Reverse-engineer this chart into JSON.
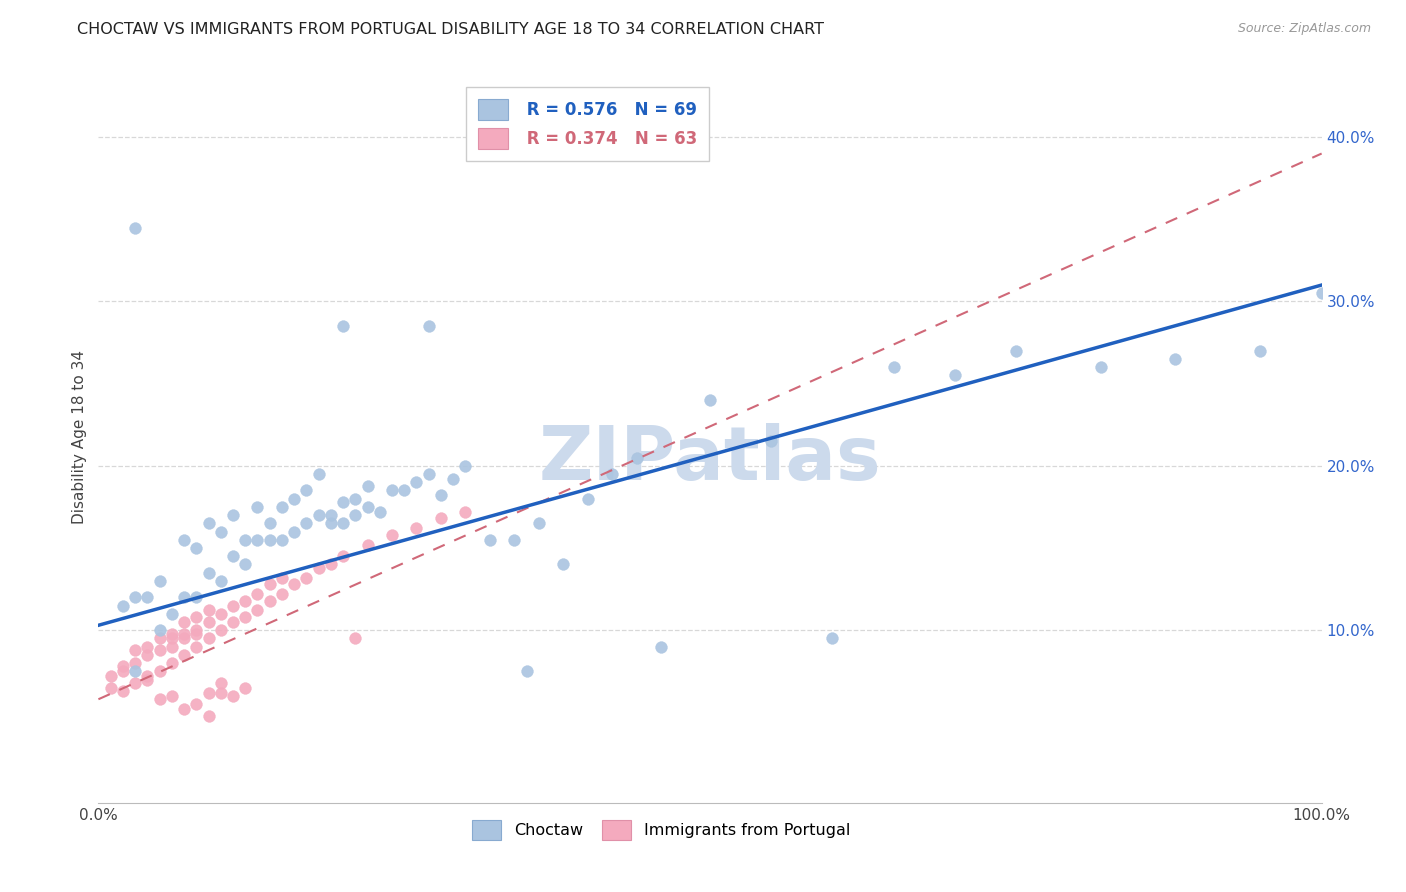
{
  "title": "CHOCTAW VS IMMIGRANTS FROM PORTUGAL DISABILITY AGE 18 TO 34 CORRELATION CHART",
  "source": "Source: ZipAtlas.com",
  "ylabel": "Disability Age 18 to 34",
  "xlim": [
    0,
    1.0
  ],
  "ylim": [
    -0.005,
    0.44
  ],
  "xticks": [
    0.0,
    0.1,
    0.2,
    0.3,
    0.4,
    0.5,
    0.6,
    0.7,
    0.8,
    0.9,
    1.0
  ],
  "yticks": [
    0.0,
    0.1,
    0.2,
    0.3,
    0.4
  ],
  "choctaw_R": 0.576,
  "choctaw_N": 69,
  "portugal_R": 0.374,
  "portugal_N": 63,
  "choctaw_color": "#aac4e0",
  "portugal_color": "#f4aabe",
  "choctaw_line_color": "#2060bf",
  "portugal_line_color": "#d06878",
  "watermark_color": "#ccdaec",
  "background_color": "#ffffff",
  "grid_color": "#d8d8d8",
  "choctaw_x": [
    0.02,
    0.03,
    0.03,
    0.04,
    0.05,
    0.05,
    0.06,
    0.07,
    0.07,
    0.08,
    0.08,
    0.09,
    0.09,
    0.1,
    0.1,
    0.11,
    0.11,
    0.12,
    0.12,
    0.13,
    0.13,
    0.14,
    0.14,
    0.15,
    0.15,
    0.16,
    0.16,
    0.17,
    0.17,
    0.18,
    0.18,
    0.19,
    0.19,
    0.2,
    0.2,
    0.21,
    0.21,
    0.22,
    0.22,
    0.23,
    0.24,
    0.25,
    0.26,
    0.27,
    0.28,
    0.29,
    0.3,
    0.32,
    0.34,
    0.36,
    0.38,
    0.4,
    0.42,
    0.44,
    0.46,
    0.5,
    0.55,
    0.6,
    0.65,
    0.7,
    0.75,
    0.82,
    0.88,
    0.95,
    1.0,
    0.03,
    0.2,
    0.27,
    0.35
  ],
  "choctaw_y": [
    0.115,
    0.075,
    0.12,
    0.12,
    0.1,
    0.13,
    0.11,
    0.12,
    0.155,
    0.12,
    0.15,
    0.135,
    0.165,
    0.13,
    0.16,
    0.145,
    0.17,
    0.14,
    0.155,
    0.155,
    0.175,
    0.155,
    0.165,
    0.155,
    0.175,
    0.16,
    0.18,
    0.165,
    0.185,
    0.17,
    0.195,
    0.165,
    0.17,
    0.165,
    0.178,
    0.17,
    0.18,
    0.175,
    0.188,
    0.172,
    0.185,
    0.185,
    0.19,
    0.195,
    0.182,
    0.192,
    0.2,
    0.155,
    0.155,
    0.165,
    0.14,
    0.18,
    0.195,
    0.205,
    0.09,
    0.24,
    0.215,
    0.095,
    0.26,
    0.255,
    0.27,
    0.26,
    0.265,
    0.27,
    0.305,
    0.345,
    0.285,
    0.285,
    0.075
  ],
  "portugal_x": [
    0.01,
    0.01,
    0.02,
    0.02,
    0.02,
    0.03,
    0.03,
    0.03,
    0.04,
    0.04,
    0.04,
    0.05,
    0.05,
    0.05,
    0.06,
    0.06,
    0.06,
    0.07,
    0.07,
    0.07,
    0.08,
    0.08,
    0.08,
    0.09,
    0.09,
    0.09,
    0.1,
    0.1,
    0.11,
    0.11,
    0.12,
    0.12,
    0.13,
    0.13,
    0.14,
    0.14,
    0.15,
    0.15,
    0.16,
    0.17,
    0.18,
    0.19,
    0.2,
    0.22,
    0.24,
    0.26,
    0.28,
    0.3,
    0.05,
    0.07,
    0.06,
    0.08,
    0.09,
    0.1,
    0.11,
    0.12,
    0.04,
    0.06,
    0.07,
    0.08,
    0.09,
    0.1,
    0.21
  ],
  "portugal_y": [
    0.065,
    0.072,
    0.063,
    0.075,
    0.078,
    0.068,
    0.08,
    0.088,
    0.072,
    0.085,
    0.09,
    0.075,
    0.088,
    0.095,
    0.08,
    0.09,
    0.098,
    0.085,
    0.095,
    0.105,
    0.09,
    0.098,
    0.108,
    0.095,
    0.105,
    0.112,
    0.1,
    0.11,
    0.105,
    0.115,
    0.108,
    0.118,
    0.112,
    0.122,
    0.118,
    0.128,
    0.122,
    0.132,
    0.128,
    0.132,
    0.138,
    0.14,
    0.145,
    0.152,
    0.158,
    0.162,
    0.168,
    0.172,
    0.058,
    0.052,
    0.06,
    0.055,
    0.048,
    0.062,
    0.06,
    0.065,
    0.07,
    0.095,
    0.098,
    0.1,
    0.062,
    0.068,
    0.095
  ],
  "choctaw_line_x0": 0.0,
  "choctaw_line_y0": 0.103,
  "choctaw_line_x1": 1.0,
  "choctaw_line_y1": 0.31,
  "portugal_line_x0": 0.0,
  "portugal_line_y0": 0.058,
  "portugal_line_x1": 1.0,
  "portugal_line_y1": 0.39
}
